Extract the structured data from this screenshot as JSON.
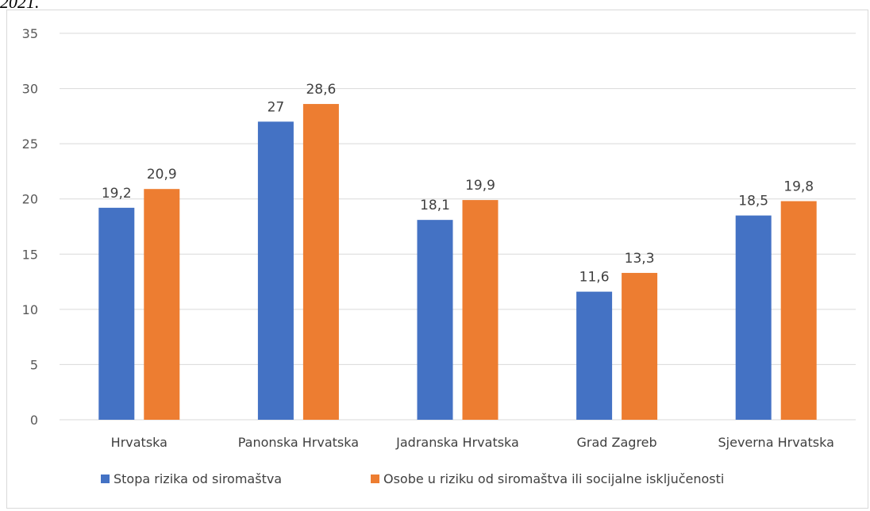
{
  "caption_fragment": "2021.",
  "colors": {
    "series1": "#4472c4",
    "series2": "#ed7d31",
    "grid": "#d9d9d9",
    "text": "#404040"
  },
  "chart_data": {
    "type": "bar",
    "categories": [
      "Hrvatska",
      "Panonska Hrvatska",
      "Jadranska Hrvatska",
      "Grad Zagreb",
      "Sjeverna Hrvatska"
    ],
    "series": [
      {
        "name": "Stopa rizika od siromaštva",
        "values": [
          19.2,
          27,
          18.1,
          11.6,
          18.5
        ],
        "labels": [
          "19,2",
          "27",
          "18,1",
          "11,6",
          "18,5"
        ]
      },
      {
        "name": "Osobe u riziku od siromaštva ili socijalne isključenosti",
        "values": [
          20.9,
          28.6,
          19.9,
          13.3,
          19.8
        ],
        "labels": [
          "20,9",
          "28,6",
          "19,9",
          "13,3",
          "19,8"
        ]
      }
    ],
    "yticks": [
      0,
      5,
      10,
      15,
      20,
      25,
      30,
      35
    ],
    "ylim": [
      0,
      35
    ],
    "grid": true,
    "legend_position": "bottom"
  }
}
